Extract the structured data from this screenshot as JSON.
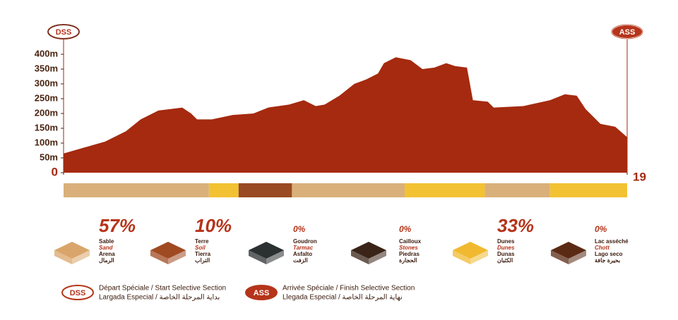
{
  "chart_data": {
    "type": "area",
    "start_label": "DSS",
    "end_label": "ASS",
    "x": [
      0,
      0.7,
      1.4,
      2.1,
      2.6,
      3.2,
      3.6,
      4.0,
      4.3,
      4.5,
      5.0,
      5.7,
      6.4,
      6.9,
      7.6,
      8.1,
      8.5,
      8.8,
      9.3,
      9.8,
      10.2,
      10.6,
      10.8,
      11.2,
      11.7,
      12.1,
      12.5,
      12.9,
      13.2,
      13.6,
      13.8,
      14.3,
      14.5,
      15.5,
      16.4,
      16.9,
      17.3,
      17.6,
      18.1,
      18.6,
      19
    ],
    "values": [
      65,
      85,
      105,
      140,
      180,
      210,
      215,
      220,
      200,
      180,
      180,
      195,
      200,
      220,
      230,
      245,
      225,
      230,
      260,
      300,
      315,
      335,
      370,
      390,
      380,
      350,
      355,
      370,
      360,
      355,
      245,
      240,
      220,
      225,
      245,
      265,
      260,
      215,
      165,
      155,
      120
    ],
    "color": "#a52a0f",
    "xlim": [
      0,
      19
    ],
    "xticks": [
      0,
      19
    ],
    "ylim": [
      0,
      400
    ],
    "yticks": [
      0,
      {
        "value": 50,
        "label": "50m"
      },
      {
        "value": 100,
        "label": "100m"
      },
      {
        "value": 150,
        "label": "150m"
      },
      {
        "value": 200,
        "label": "200m"
      },
      {
        "value": 250,
        "label": "250m"
      },
      {
        "value": 300,
        "label": "300m"
      },
      {
        "value": 350,
        "label": "350m"
      },
      {
        "value": 400,
        "label": "400m"
      }
    ],
    "surface_strip": [
      {
        "from": 0,
        "to": 4.9,
        "color": "#d9b07a"
      },
      {
        "from": 4.9,
        "to": 5.9,
        "color": "#f2c233"
      },
      {
        "from": 5.9,
        "to": 7.7,
        "color": "#9a4a22"
      },
      {
        "from": 7.7,
        "to": 11.5,
        "color": "#d9b07a"
      },
      {
        "from": 11.5,
        "to": 14.2,
        "color": "#f2c233"
      },
      {
        "from": 14.2,
        "to": 16.4,
        "color": "#d9b07a"
      },
      {
        "from": 16.4,
        "to": 19,
        "color": "#f2c233"
      }
    ],
    "surfaces": [
      {
        "value": 57,
        "value_label": "57%",
        "names": [
          "Sable",
          "Sand",
          "Arena",
          "الرمال"
        ],
        "color": "#d9a56a"
      },
      {
        "value": 10,
        "value_label": "10%",
        "names": [
          "Terre",
          "Soil",
          "Tierra",
          "التراب"
        ],
        "color": "#a04a22"
      },
      {
        "value": 0,
        "value_label": "0%",
        "names": [
          "Goudron",
          "Tarmac",
          "Asfalto",
          "الزفت"
        ],
        "color": "#2b3030"
      },
      {
        "value": 0,
        "value_label": "0%",
        "names": [
          "Cailloux",
          "Stones",
          "Piedras",
          "الحجارة"
        ],
        "color": "#3a2418"
      },
      {
        "value": 33,
        "value_label": "33%",
        "names": [
          "Dunes",
          "Dunes",
          "Dunas",
          "الكثبان"
        ],
        "color": "#f0b930"
      },
      {
        "value": 0,
        "value_label": "0%",
        "names": [
          "Lac asséché",
          "Chott",
          "Lago seco",
          "بحيرة جافة"
        ],
        "color": "#5a2a14"
      }
    ]
  },
  "legend": {
    "start": {
      "badge": "DSS",
      "line1": "Départ Spéciale / Start Selective Section",
      "line2": "Largada Especial / بداية المرحلة الخاصة"
    },
    "finish": {
      "badge": "ASS",
      "line1": "Arrivée Spéciale / Finish Selective Section",
      "line2": "Llegada Especial / نهاية المرحلة الخاصة"
    }
  }
}
